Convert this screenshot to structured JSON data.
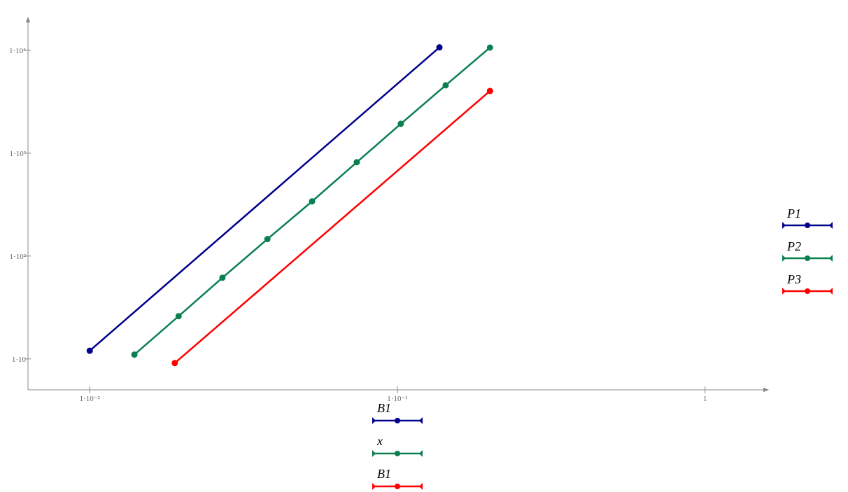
{
  "chart_data": {
    "type": "line",
    "xlog": true,
    "ylog": true,
    "xlim": [
      0.0063,
      1.58
    ],
    "ylim": [
      5,
      19300
    ],
    "xticks": [
      {
        "value": 0.01,
        "label": "1·10⁻²"
      },
      {
        "value": 0.1,
        "label": "1·10⁻¹"
      },
      1
    ],
    "yticks": [
      {
        "value": 10,
        "label": "1·10"
      },
      {
        "value": 100,
        "label": "1·10²"
      },
      {
        "value": 1000,
        "label": "1·10³"
      },
      {
        "value": 10000,
        "label": "1·10⁴"
      }
    ],
    "series": [
      {
        "name": "P1",
        "x_name": "B1",
        "color": "#00008b",
        "x": [
          0.01,
          0.137
        ],
        "values": [
          12,
          10700
        ]
      },
      {
        "name": "P2",
        "x_name": "x",
        "color": "#0a8050",
        "x": [
          0.01397,
          0.01945,
          0.027,
          0.0378,
          0.0528,
          0.0738,
          0.1026,
          0.1435,
          0.2
        ],
        "values": [
          11,
          26,
          61.5,
          146,
          340,
          817,
          1930,
          4570,
          10650
        ]
      },
      {
        "name": "P3",
        "x_name": "B1",
        "color": "#ff0000",
        "x": [
          0.0189,
          0.2
        ],
        "values": [
          9.1,
          4030
        ]
      }
    ]
  }
}
